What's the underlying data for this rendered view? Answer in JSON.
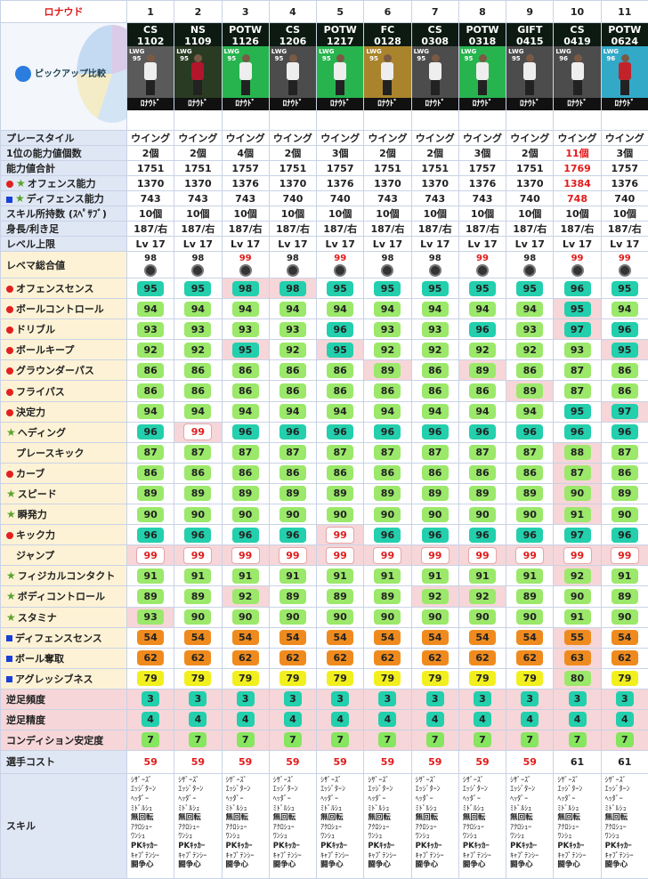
{
  "player_name": "ロナウド",
  "pickup_label": "ピックアップ比較",
  "columns": [
    {
      "num": "1",
      "cat": "CS",
      "date": "1102",
      "pos": "LWG",
      "ovr": "95",
      "shirt": "#eeeeee",
      "bg": "#5a5a5a"
    },
    {
      "num": "2",
      "cat": "NS",
      "date": "1109",
      "pos": "LWG",
      "ovr": "95",
      "shirt": "#b3152a",
      "bg": "#2a3b24"
    },
    {
      "num": "3",
      "cat": "POTW",
      "date": "1126",
      "pos": "LWG",
      "ovr": "95",
      "shirt": "#eeeeee",
      "bg": "#27b44e"
    },
    {
      "num": "4",
      "cat": "CS",
      "date": "1206",
      "pos": "LWG",
      "ovr": "95",
      "shirt": "#eeeeee",
      "bg": "#4c4c4c"
    },
    {
      "num": "5",
      "cat": "POTW",
      "date": "1217",
      "pos": "LWG",
      "ovr": "95",
      "shirt": "#eeeeee",
      "bg": "#27b44e"
    },
    {
      "num": "6",
      "cat": "FC",
      "date": "0128",
      "pos": "LWG",
      "ovr": "95",
      "shirt": "#eeeeee",
      "bg": "#a9842c"
    },
    {
      "num": "7",
      "cat": "CS",
      "date": "0308",
      "pos": "LWG",
      "ovr": "95",
      "shirt": "#eeeeee",
      "bg": "#4c4c4c"
    },
    {
      "num": "8",
      "cat": "POTW",
      "date": "0318",
      "pos": "LWG",
      "ovr": "95",
      "shirt": "#eeeeee",
      "bg": "#27b44e"
    },
    {
      "num": "9",
      "cat": "GIFT",
      "date": "0415",
      "pos": "LWG",
      "ovr": "95",
      "shirt": "#eeeeee",
      "bg": "#4c4c4c"
    },
    {
      "num": "10",
      "cat": "CS",
      "date": "0419",
      "pos": "LWG",
      "ovr": "96",
      "shirt": "#eeeeee",
      "bg": "#4c4c4c"
    },
    {
      "num": "11",
      "cat": "POTW",
      "date": "0624",
      "pos": "LWG",
      "ovr": "96",
      "shirt": "#c2232a",
      "bg": "#33a9c8"
    }
  ],
  "card_name": "ﾛﾅｳﾄﾞ",
  "info_rows": [
    {
      "label": "プレースタイル",
      "values": [
        "ウイング",
        "ウイング",
        "ウイング",
        "ウイング",
        "ウイング",
        "ウイング",
        "ウイング",
        "ウイング",
        "ウイング",
        "ウイング",
        "ウイング"
      ]
    },
    {
      "label": "1位の能力値個数",
      "values": [
        "2個",
        "2個",
        "4個",
        "2個",
        "3個",
        "2個",
        "2個",
        "3個",
        "2個",
        "11個",
        "3個"
      ],
      "red": [
        9
      ]
    },
    {
      "label": "能力値合計",
      "values": [
        "1751",
        "1751",
        "1757",
        "1751",
        "1757",
        "1751",
        "1751",
        "1757",
        "1751",
        "1769",
        "1757"
      ],
      "red": [
        9
      ]
    },
    {
      "label": "オフェンス能力",
      "values": [
        "1370",
        "1370",
        "1376",
        "1370",
        "1376",
        "1370",
        "1370",
        "1376",
        "1370",
        "1384",
        "1376"
      ],
      "red": [
        9
      ],
      "icon": "rstar"
    },
    {
      "label": "ディフェンス能力",
      "values": [
        "743",
        "743",
        "743",
        "740",
        "740",
        "743",
        "743",
        "743",
        "740",
        "748",
        "740"
      ],
      "red": [
        9
      ],
      "icon": "bstar"
    },
    {
      "label": "スキル所持数 (ｽﾍﾟｻﾌﾞ)",
      "values": [
        "10個",
        "10個",
        "10個",
        "10個",
        "10個",
        "10個",
        "10個",
        "10個",
        "10個",
        "10個",
        "10個"
      ]
    },
    {
      "label": "身長/利き足",
      "values": [
        "187/右",
        "187/右",
        "187/右",
        "187/右",
        "187/右",
        "187/右",
        "187/右",
        "187/右",
        "187/右",
        "187/右",
        "187/右"
      ]
    },
    {
      "label": "レベル上限",
      "values": [
        "Lv 17",
        "Lv 17",
        "Lv 17",
        "Lv 17",
        "Lv 17",
        "Lv 17",
        "Lv 17",
        "Lv 17",
        "Lv 17",
        "Lv 17",
        "Lv 17"
      ]
    }
  ],
  "rating_row": {
    "label": "レベマ総合値",
    "values": [
      "98",
      "98",
      "99",
      "98",
      "99",
      "98",
      "98",
      "99",
      "98",
      "99",
      "99"
    ]
  },
  "stat_rows": [
    {
      "label": "オフェンスセンス",
      "icon": "r",
      "values": [
        95,
        95,
        98,
        98,
        95,
        95,
        95,
        95,
        95,
        96,
        95
      ],
      "hl": [
        2,
        3
      ]
    },
    {
      "label": "ボールコントロール",
      "icon": "r",
      "values": [
        94,
        94,
        94,
        94,
        94,
        94,
        94,
        94,
        94,
        95,
        94
      ],
      "hl": [
        9
      ]
    },
    {
      "label": "ドリブル",
      "icon": "r",
      "values": [
        93,
        93,
        93,
        93,
        96,
        93,
        93,
        96,
        93,
        97,
        96
      ],
      "hl": [
        9
      ]
    },
    {
      "label": "ボールキープ",
      "icon": "r",
      "values": [
        92,
        92,
        95,
        92,
        95,
        92,
        92,
        92,
        92,
        93,
        95
      ],
      "hl": [
        2,
        4,
        10
      ]
    },
    {
      "label": "グラウンダーパス",
      "icon": "r",
      "values": [
        86,
        86,
        86,
        86,
        86,
        89,
        86,
        89,
        86,
        87,
        86
      ],
      "hl": [
        5,
        7
      ]
    },
    {
      "label": "フライパス",
      "icon": "r",
      "values": [
        86,
        86,
        86,
        86,
        86,
        86,
        86,
        86,
        89,
        87,
        86
      ],
      "hl": [
        8
      ]
    },
    {
      "label": "決定力",
      "icon": "r",
      "values": [
        94,
        94,
        94,
        94,
        94,
        94,
        94,
        94,
        94,
        95,
        97
      ],
      "hl": [
        10
      ]
    },
    {
      "label": "ヘディング",
      "icon": "s",
      "values": [
        96,
        99,
        96,
        96,
        96,
        96,
        96,
        96,
        96,
        96,
        96
      ],
      "hl": [
        1
      ]
    },
    {
      "label": "プレースキック",
      "icon": "",
      "values": [
        87,
        87,
        87,
        87,
        87,
        87,
        87,
        87,
        87,
        88,
        87
      ],
      "hl": [
        9
      ]
    },
    {
      "label": "カーブ",
      "icon": "r",
      "values": [
        86,
        86,
        86,
        86,
        86,
        86,
        86,
        86,
        86,
        87,
        86
      ],
      "hl": [
        9
      ]
    },
    {
      "label": "スピード",
      "icon": "s",
      "values": [
        89,
        89,
        89,
        89,
        89,
        89,
        89,
        89,
        89,
        90,
        89
      ],
      "hl": [
        9
      ]
    },
    {
      "label": "瞬発力",
      "icon": "s",
      "values": [
        90,
        90,
        90,
        90,
        90,
        90,
        90,
        90,
        90,
        91,
        90
      ],
      "hl": [
        9
      ]
    },
    {
      "label": "キック力",
      "icon": "r",
      "values": [
        96,
        96,
        96,
        96,
        99,
        96,
        96,
        96,
        96,
        97,
        96
      ],
      "hl": [
        4
      ]
    },
    {
      "label": "ジャンプ",
      "icon": "",
      "values": [
        99,
        99,
        99,
        99,
        99,
        99,
        99,
        99,
        99,
        99,
        99
      ],
      "hl": [
        0,
        1,
        2,
        3,
        4,
        5,
        6,
        7,
        8,
        9,
        10
      ]
    },
    {
      "label": "フィジカルコンタクト",
      "icon": "s",
      "values": [
        91,
        91,
        91,
        91,
        91,
        91,
        91,
        91,
        91,
        92,
        91
      ],
      "hl": [
        9
      ]
    },
    {
      "label": "ボディコントロール",
      "icon": "s",
      "values": [
        89,
        89,
        92,
        89,
        89,
        89,
        92,
        92,
        89,
        90,
        89
      ],
      "hl": [
        2,
        6,
        7
      ]
    },
    {
      "label": "スタミナ",
      "icon": "s",
      "values": [
        93,
        90,
        90,
        90,
        90,
        90,
        90,
        90,
        90,
        91,
        90
      ],
      "hl": [
        0
      ]
    },
    {
      "label": "ディフェンスセンス",
      "icon": "b",
      "values": [
        54,
        54,
        54,
        54,
        54,
        54,
        54,
        54,
        54,
        55,
        54
      ],
      "hl": [
        9
      ]
    },
    {
      "label": "ボール奪取",
      "icon": "b",
      "values": [
        62,
        62,
        62,
        62,
        62,
        62,
        62,
        62,
        62,
        63,
        62
      ],
      "hl": [
        9
      ]
    },
    {
      "label": "アグレッシブネス",
      "icon": "b",
      "values": [
        79,
        79,
        79,
        79,
        79,
        79,
        79,
        79,
        79,
        80,
        79
      ],
      "hl": [
        9
      ]
    }
  ],
  "foot_rows": [
    {
      "label": "逆足頻度",
      "values": [
        3,
        3,
        3,
        3,
        3,
        3,
        3,
        3,
        3,
        3,
        3
      ]
    },
    {
      "label": "逆足精度",
      "values": [
        4,
        4,
        4,
        4,
        4,
        4,
        4,
        4,
        4,
        4,
        4
      ]
    },
    {
      "label": "コンディション安定度",
      "values": [
        7,
        7,
        7,
        7,
        7,
        7,
        7,
        7,
        7,
        7,
        7
      ]
    }
  ],
  "cost_row": {
    "label": "選手コスト",
    "values": [
      "59",
      "59",
      "59",
      "59",
      "59",
      "59",
      "59",
      "59",
      "59",
      "61",
      "61"
    ],
    "red": [
      0,
      1,
      2,
      3,
      4,
      5,
      6,
      7,
      8
    ]
  },
  "skills_label": "スキル",
  "skills": [
    "ｼｻﾞｰｽﾞ",
    "ｴｯｼﾞﾀｰﾝ",
    "ﾍｯﾀﾞｰ",
    "ﾐﾄﾞﾙｼｭ",
    "無回転",
    "ｱｸﾛｼｭｰ",
    "ﾜﾝｼｭ",
    "PKｷｯｶｰ",
    "ｷｬﾌﾟﾃﾝｼｰ",
    "闘争心"
  ],
  "skills_bold": [
    4,
    7,
    9
  ]
}
